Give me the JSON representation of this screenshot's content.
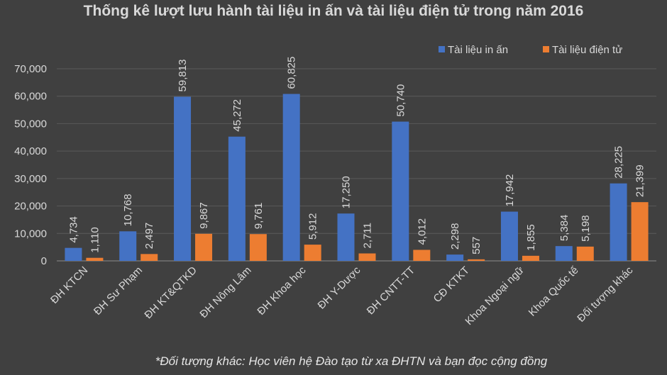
{
  "chart_data": {
    "type": "bar",
    "title": "Thống kê lượt lưu hành tài liệu in ấn và tài liệu điện tử trong năm 2016",
    "categories": [
      "ĐH KTCN",
      "ĐH Sư Phạm",
      "ĐH KT&QTKD",
      "ĐH Nông Lâm",
      "ĐH Khoa học",
      "ĐH Y-Dược",
      "ĐH CNTT-TT",
      "CĐ KTKT",
      "Khoa Ngoại ngữ",
      "Khoa Quốc tế",
      "Đối tượng khác"
    ],
    "series": [
      {
        "name": "Tài liệu in ấn",
        "color": "#4472C4",
        "values": [
          4734,
          10768,
          59813,
          45272,
          60825,
          17250,
          50740,
          2298,
          17942,
          5384,
          28225
        ]
      },
      {
        "name": "Tài liệu điện tử",
        "color": "#ED7D31",
        "values": [
          1110,
          2497,
          9867,
          9761,
          5912,
          2711,
          4012,
          557,
          1855,
          5198,
          21399
        ]
      }
    ],
    "ylim": [
      0,
      70000
    ],
    "yticks": [
      0,
      10000,
      20000,
      30000,
      40000,
      50000,
      60000,
      70000
    ],
    "grid": true,
    "legend_position": "top-right",
    "footnote": "*Đối tượng khác: Học viên hệ Đào tạo từ xa ĐHTN và bạn đọc cộng đồng"
  }
}
